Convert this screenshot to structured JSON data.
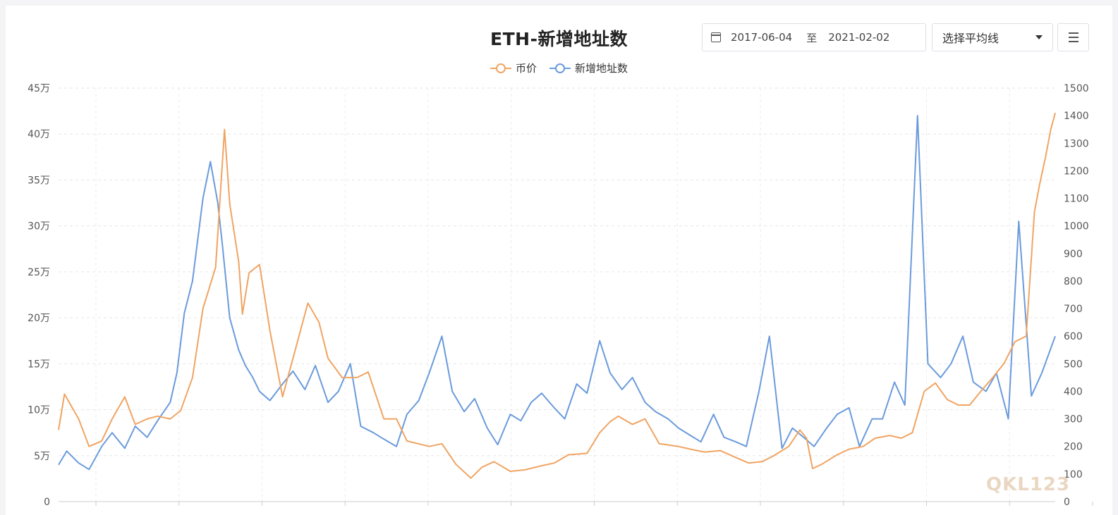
{
  "header": {
    "title": "ETH-新增地址数",
    "date_start": "2017-06-04",
    "date_sep": "至",
    "date_end": "2021-02-02",
    "avg_select": "选择平均线"
  },
  "watermark": "QKL123",
  "chart_data": {
    "type": "line",
    "title": "ETH-新增地址数",
    "x_range": [
      "2017-06-04",
      "2021-02-02"
    ],
    "grid": true,
    "legend_position": "top-center",
    "y_left": {
      "min": 0,
      "max": 450000,
      "ticks": [
        0,
        50000,
        100000,
        150000,
        200000,
        250000,
        300000,
        350000,
        400000,
        450000
      ],
      "tick_labels": [
        "0",
        "5万",
        "10万",
        "15万",
        "20万",
        "25万",
        "30万",
        "35万",
        "40万",
        "45万"
      ]
    },
    "y_right": {
      "min": 0,
      "max": 1500,
      "ticks": [
        0,
        100,
        200,
        300,
        400,
        500,
        600,
        700,
        800,
        900,
        1000,
        1100,
        1200,
        1300,
        1400,
        1500
      ],
      "tick_labels": [
        "0",
        "100",
        "200",
        "300",
        "400",
        "500",
        "600",
        "700",
        "800",
        "900",
        "1000",
        "1100",
        "1200",
        "1300",
        "1400",
        "1500"
      ]
    },
    "series": [
      {
        "name": "新增地址数",
        "axis": "left",
        "color": "#6a9bdc",
        "x": [
          "2017-06-04",
          "2017-06-15",
          "2017-07-01",
          "2017-07-15",
          "2017-08-01",
          "2017-08-15",
          "2017-09-01",
          "2017-09-15",
          "2017-10-01",
          "2017-10-15",
          "2017-11-01",
          "2017-11-10",
          "2017-11-20",
          "2017-12-01",
          "2017-12-08",
          "2017-12-15",
          "2017-12-25",
          "2018-01-04",
          "2018-01-10",
          "2018-01-20",
          "2018-02-01",
          "2018-02-10",
          "2018-02-20",
          "2018-03-01",
          "2018-03-15",
          "2018-04-01",
          "2018-04-15",
          "2018-05-01",
          "2018-05-15",
          "2018-06-01",
          "2018-06-15",
          "2018-07-01",
          "2018-07-15",
          "2018-08-01",
          "2018-08-15",
          "2018-09-01",
          "2018-09-15",
          "2018-10-01",
          "2018-10-15",
          "2018-11-01",
          "2018-11-15",
          "2018-12-01",
          "2018-12-15",
          "2019-01-01",
          "2019-01-15",
          "2019-02-01",
          "2019-02-15",
          "2019-03-01",
          "2019-03-15",
          "2019-04-01",
          "2019-04-15",
          "2019-05-01",
          "2019-05-15",
          "2019-06-01",
          "2019-06-15",
          "2019-07-01",
          "2019-07-15",
          "2019-08-01",
          "2019-08-15",
          "2019-09-01",
          "2019-09-15",
          "2019-10-01",
          "2019-10-15",
          "2019-11-01",
          "2019-11-15",
          "2019-12-01",
          "2019-12-15",
          "2020-01-01",
          "2020-01-15",
          "2020-02-01",
          "2020-02-15",
          "2020-03-01",
          "2020-03-15",
          "2020-04-01",
          "2020-04-15",
          "2020-05-01",
          "2020-05-15",
          "2020-06-01",
          "2020-06-15",
          "2020-07-01",
          "2020-07-15",
          "2020-08-01",
          "2020-08-15",
          "2020-09-01",
          "2020-09-15",
          "2020-10-01",
          "2020-10-15",
          "2020-11-01",
          "2020-11-15",
          "2020-12-01",
          "2020-12-15",
          "2021-01-01",
          "2021-01-15",
          "2021-02-02"
        ],
        "values": [
          40000,
          55000,
          42000,
          35000,
          60000,
          75000,
          58000,
          82000,
          70000,
          88000,
          108000,
          140000,
          205000,
          240000,
          285000,
          330000,
          370000,
          325000,
          280000,
          200000,
          165000,
          148000,
          135000,
          120000,
          110000,
          128000,
          142000,
          122000,
          148000,
          108000,
          120000,
          150000,
          82000,
          75000,
          68000,
          60000,
          95000,
          110000,
          140000,
          180000,
          120000,
          98000,
          112000,
          80000,
          62000,
          95000,
          88000,
          108000,
          118000,
          102000,
          90000,
          128000,
          118000,
          175000,
          140000,
          122000,
          135000,
          108000,
          98000,
          90000,
          80000,
          72000,
          65000,
          95000,
          70000,
          65000,
          60000,
          120000,
          180000,
          58000,
          80000,
          70000,
          60000,
          80000,
          95000,
          102000,
          60000,
          90000,
          90000,
          130000,
          105000,
          420000,
          150000,
          135000,
          150000,
          180000,
          130000,
          120000,
          140000,
          90000,
          305000,
          115000,
          140000,
          180000
        ]
      },
      {
        "name": "币价",
        "axis": "right",
        "color": "#f0a463",
        "x": [
          "2017-06-04",
          "2017-06-12",
          "2017-07-01",
          "2017-07-15",
          "2017-08-01",
          "2017-08-15",
          "2017-09-01",
          "2017-09-15",
          "2017-10-01",
          "2017-10-15",
          "2017-11-01",
          "2017-11-15",
          "2017-12-01",
          "2017-12-15",
          "2018-01-01",
          "2018-01-13",
          "2018-01-20",
          "2018-02-01",
          "2018-02-06",
          "2018-02-15",
          "2018-03-01",
          "2018-03-15",
          "2018-04-01",
          "2018-04-15",
          "2018-05-05",
          "2018-05-20",
          "2018-06-01",
          "2018-06-20",
          "2018-07-10",
          "2018-07-25",
          "2018-08-15",
          "2018-09-01",
          "2018-09-15",
          "2018-10-15",
          "2018-11-01",
          "2018-11-20",
          "2018-12-10",
          "2018-12-25",
          "2019-01-10",
          "2019-02-01",
          "2019-02-20",
          "2019-03-15",
          "2019-04-01",
          "2019-04-20",
          "2019-05-15",
          "2019-06-01",
          "2019-06-15",
          "2019-06-26",
          "2019-07-15",
          "2019-08-01",
          "2019-08-20",
          "2019-09-15",
          "2019-10-01",
          "2019-10-20",
          "2019-11-10",
          "2019-12-01",
          "2019-12-18",
          "2020-01-05",
          "2020-01-20",
          "2020-02-10",
          "2020-02-25",
          "2020-03-05",
          "2020-03-13",
          "2020-03-25",
          "2020-04-15",
          "2020-05-01",
          "2020-05-20",
          "2020-06-05",
          "2020-06-25",
          "2020-07-10",
          "2020-07-25",
          "2020-08-10",
          "2020-08-25",
          "2020-09-10",
          "2020-09-25",
          "2020-10-10",
          "2020-10-25",
          "2020-11-10",
          "2020-11-25",
          "2020-12-10",
          "2020-12-25",
          "2021-01-05",
          "2021-01-12",
          "2021-01-20",
          "2021-01-27",
          "2021-02-02"
        ],
        "values": [
          260,
          390,
          300,
          200,
          220,
          300,
          380,
          280,
          300,
          310,
          300,
          330,
          450,
          700,
          850,
          1350,
          1080,
          870,
          680,
          830,
          860,
          620,
          380,
          520,
          720,
          650,
          520,
          450,
          450,
          470,
          300,
          300,
          220,
          200,
          210,
          135,
          85,
          125,
          145,
          110,
          115,
          130,
          140,
          170,
          175,
          250,
          290,
          310,
          280,
          300,
          210,
          200,
          190,
          180,
          185,
          160,
          140,
          145,
          165,
          200,
          260,
          230,
          120,
          135,
          170,
          190,
          200,
          230,
          240,
          230,
          250,
          400,
          430,
          370,
          350,
          350,
          400,
          450,
          500,
          580,
          600,
          1050,
          1150,
          1250,
          1350,
          1410
        ]
      }
    ]
  }
}
